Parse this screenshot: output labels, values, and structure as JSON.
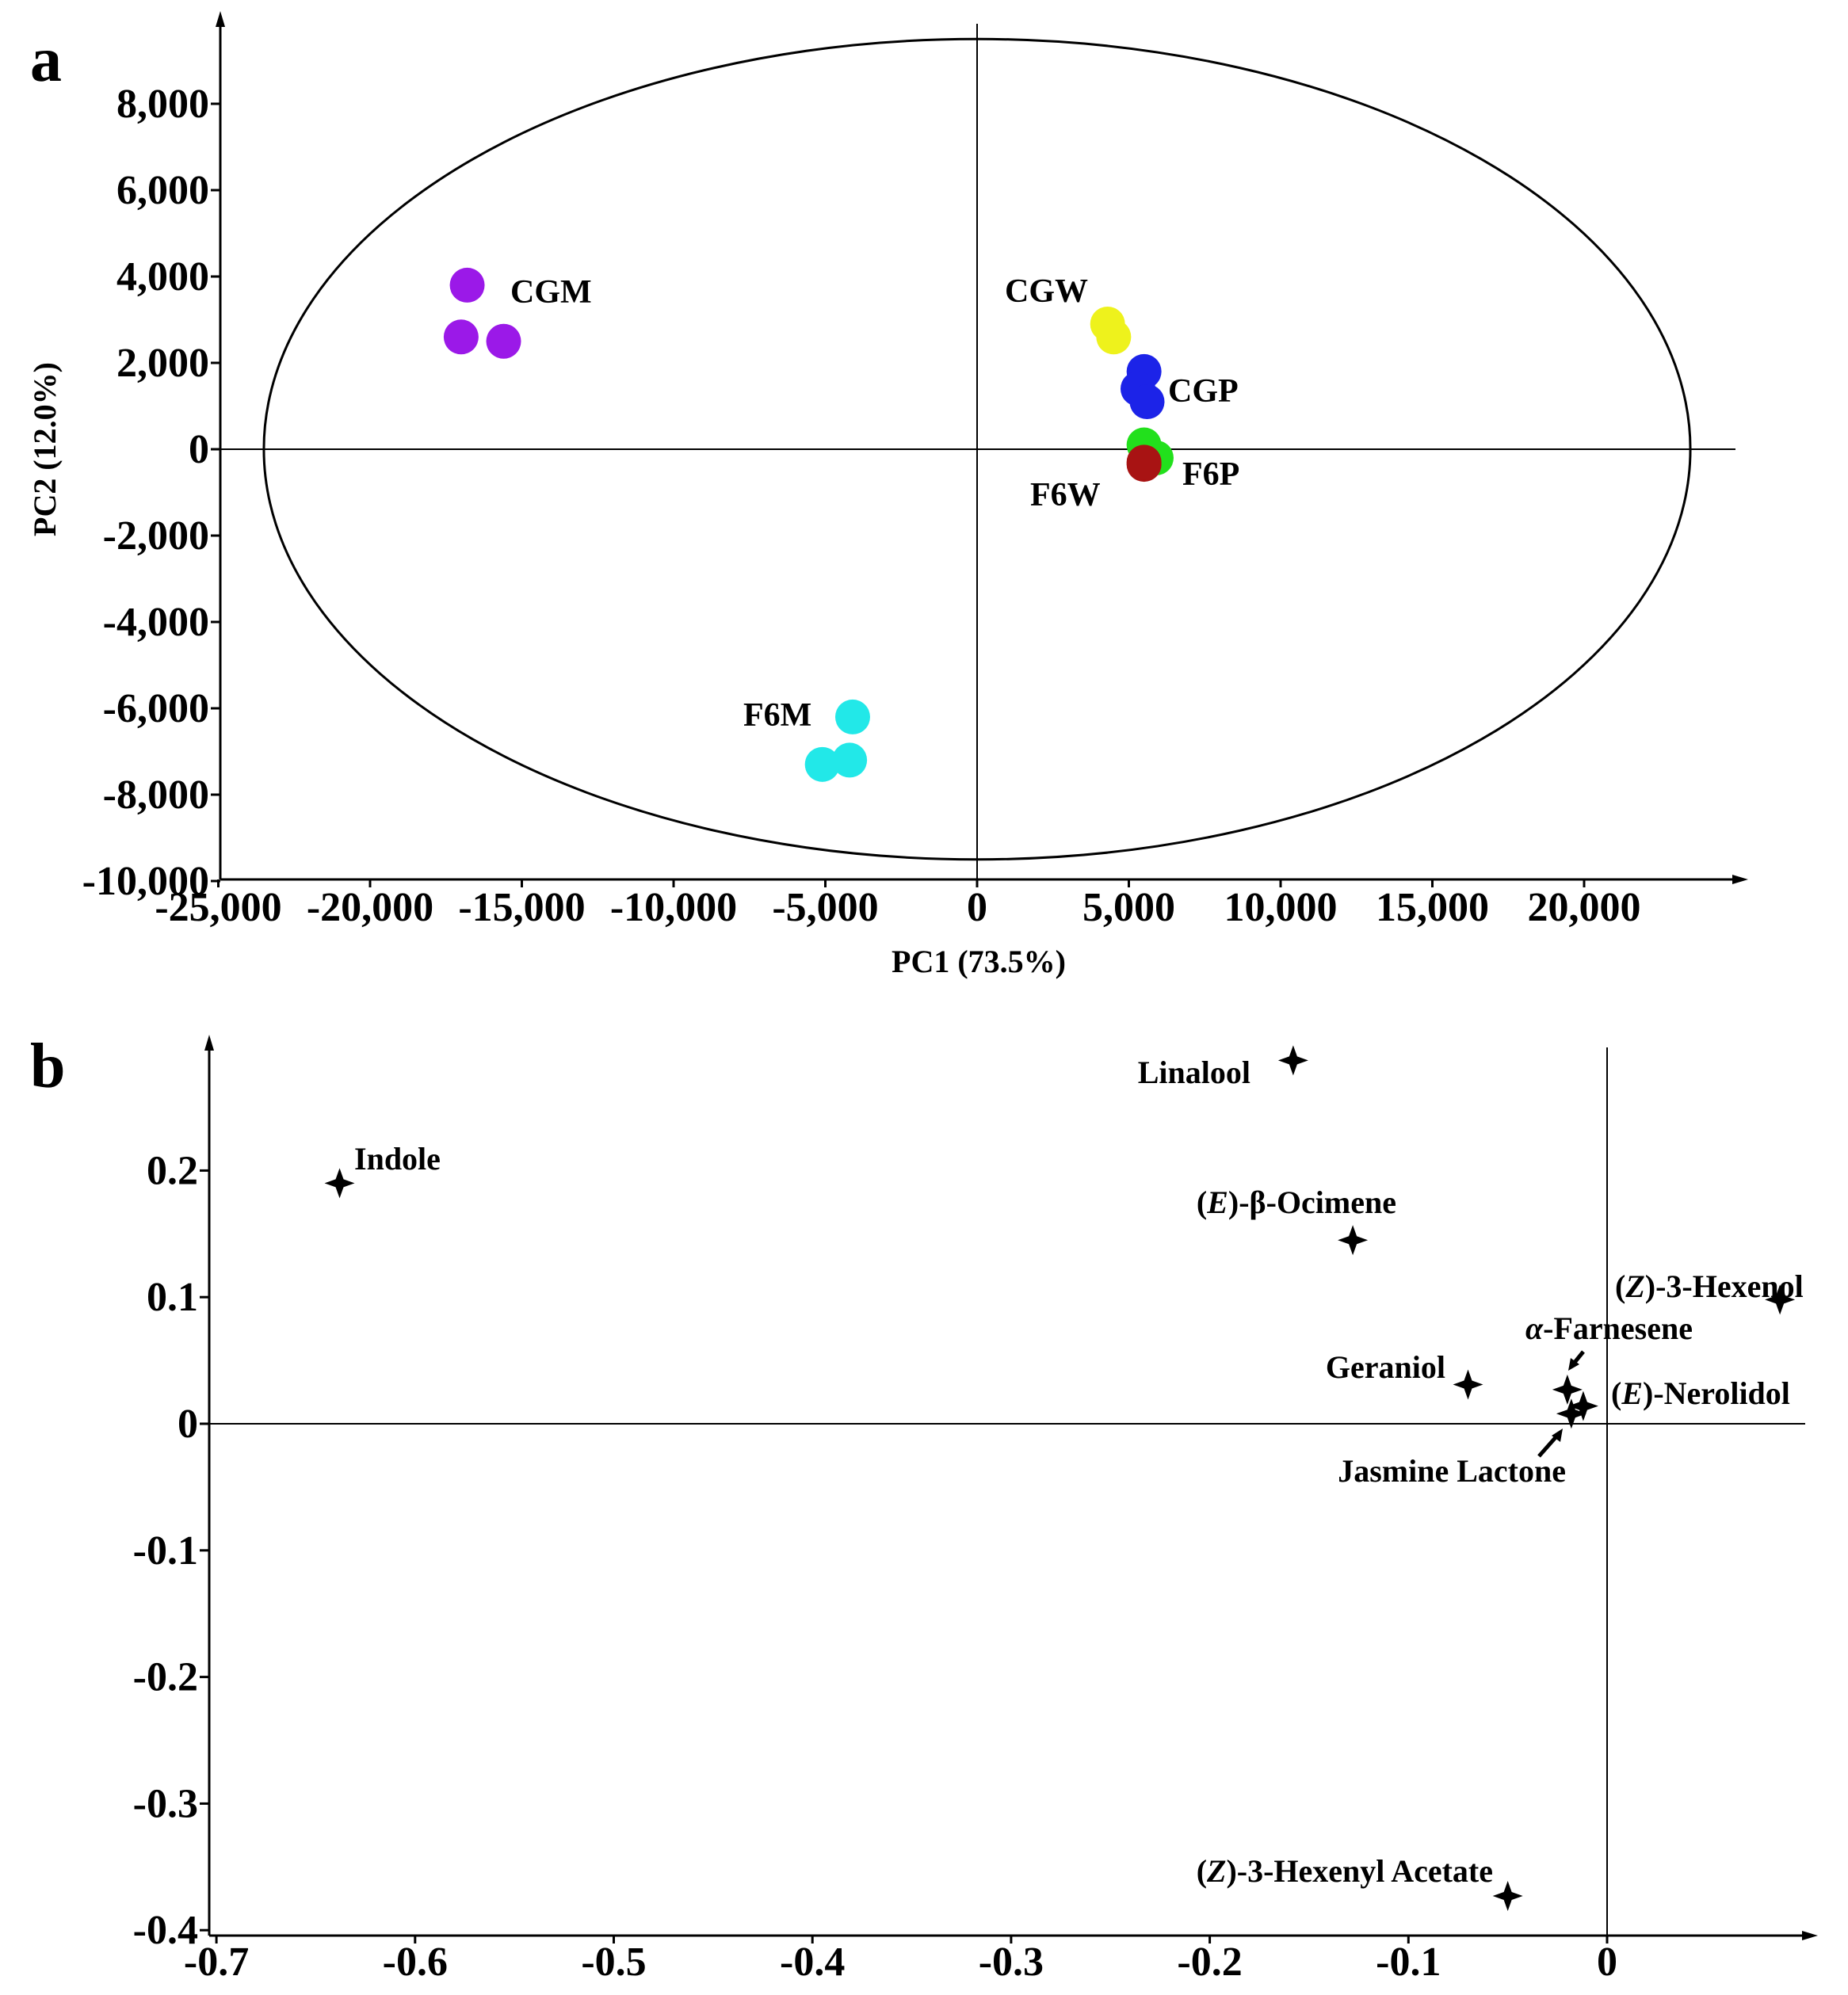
{
  "chart_data": [
    {
      "panel": "a",
      "type": "scatter",
      "title": "",
      "xlabel": "PC1 (73.5%)",
      "ylabel": "PC2 (12.0%)",
      "xlim": [
        -25000,
        25000
      ],
      "ylim": [
        -10000,
        10000
      ],
      "xticks": [
        "-25,000",
        "-20,000",
        "-15,000",
        "-10,000",
        "-5,000",
        "0",
        "5,000",
        "10,000",
        "15,000",
        "20,000"
      ],
      "xtick_values": [
        -25000,
        -20000,
        -15000,
        -10000,
        -5000,
        0,
        5000,
        10000,
        15000,
        20000
      ],
      "yticks": [
        "8,000",
        "6,000",
        "4,000",
        "2,000",
        "0",
        "-2,000",
        "-4,000",
        "-6,000",
        "-8,000",
        "-10,000"
      ],
      "ytick_values": [
        8000,
        6000,
        4000,
        2000,
        0,
        -2000,
        -4000,
        -6000,
        -8000,
        -10000
      ],
      "ellipse": {
        "center": [
          0,
          0
        ],
        "rx": 23500,
        "ry": 9500
      },
      "series": [
        {
          "name": "CGM",
          "color": "#9b19e8",
          "points": [
            [
              -16800,
              3800
            ],
            [
              -17000,
              2600
            ],
            [
              -15600,
              2500
            ]
          ]
        },
        {
          "name": "CGW",
          "color": "#eef21c",
          "points": [
            [
              4300,
              2900
            ],
            [
              4500,
              2600
            ]
          ]
        },
        {
          "name": "CGP",
          "color": "#1c23e8",
          "points": [
            [
              5500,
              1800
            ],
            [
              5300,
              1400
            ],
            [
              5600,
              1100
            ]
          ]
        },
        {
          "name": "F6W",
          "color": "#22e01c",
          "points": [
            [
              5500,
              100
            ],
            [
              5900,
              -200
            ]
          ]
        },
        {
          "name": "F6P",
          "color": "#a81313",
          "points": [
            [
              5500,
              -350
            ],
            [
              5500,
              -300
            ]
          ]
        },
        {
          "name": "F6M",
          "color": "#22e8e8",
          "points": [
            [
              -4100,
              -6200
            ],
            [
              -4200,
              -7200
            ],
            [
              -5100,
              -7300
            ]
          ]
        }
      ]
    },
    {
      "panel": "b",
      "type": "scatter",
      "title": "",
      "xlabel": "",
      "ylabel": "",
      "xlim": [
        -0.7,
        0.1
      ],
      "ylim": [
        -0.4,
        0.3
      ],
      "xticks": [
        "-0.7",
        "-0.6",
        "-0.5",
        "-0.4",
        "-0.3",
        "-0.2",
        "-0.1",
        "0"
      ],
      "xtick_values": [
        -0.7,
        -0.6,
        -0.5,
        -0.4,
        -0.3,
        -0.2,
        -0.1,
        0
      ],
      "yticks": [
        "0.2",
        "0.1",
        "0",
        "-0.1",
        "-0.2",
        "-0.3",
        "-0.4"
      ],
      "ytick_values": [
        0.2,
        0.1,
        0,
        -0.1,
        -0.2,
        -0.3,
        -0.4
      ],
      "points": [
        {
          "pre": "",
          "italic": "",
          "post": "Indole",
          "x": -0.638,
          "y": 0.19
        },
        {
          "pre": "",
          "italic": "",
          "post": "Linalool",
          "x": -0.158,
          "y": 0.287
        },
        {
          "pre": "(",
          "italic": "E",
          "post": ")-β-Ocimene",
          "x": -0.128,
          "y": 0.145
        },
        {
          "pre": "(",
          "italic": "Z",
          "post": ")-3-Hexenol",
          "x": 0.087,
          "y": 0.098
        },
        {
          "pre": "",
          "italic": "α",
          "post": "-Farnesene",
          "x": -0.02,
          "y": 0.027
        },
        {
          "pre": "",
          "italic": "",
          "post": "Geraniol",
          "x": -0.07,
          "y": 0.031
        },
        {
          "pre": "(",
          "italic": "E",
          "post": ")-Nerolidol",
          "x": -0.012,
          "y": 0.014
        },
        {
          "pre": "",
          "italic": "",
          "post": "Jasmine Lactone",
          "x": -0.018,
          "y": 0.008
        },
        {
          "pre": "(",
          "italic": "Z",
          "post": ")-3-Hexenyl Acetate",
          "x": -0.05,
          "y": -0.373
        }
      ]
    }
  ]
}
